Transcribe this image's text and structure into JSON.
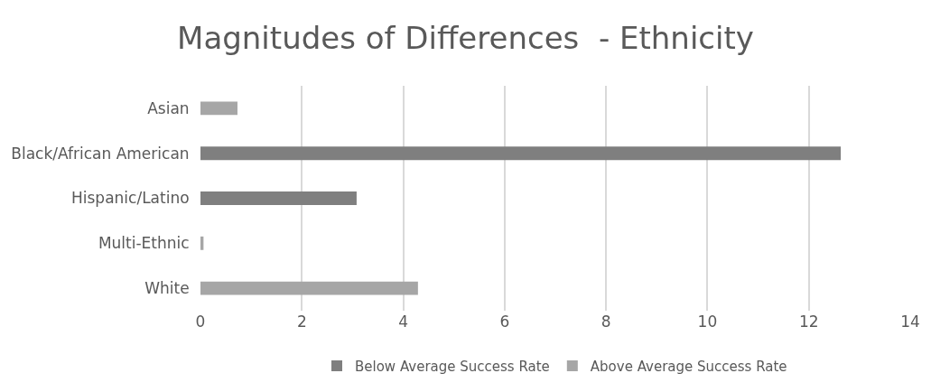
{
  "chart_data": {
    "type": "bar",
    "orientation": "horizontal",
    "title": "Magnitudes of Differences  - Ethnicity",
    "categories": [
      "Asian",
      "Black/African American",
      "Hispanic/Latino",
      "Multi-Ethnic",
      "White"
    ],
    "series": [
      {
        "name": "Below Average Success Rate",
        "color": "#7f7f7f",
        "values": [
          null,
          12.63,
          3.08,
          null,
          null
        ]
      },
      {
        "name": "Above Average Success Rate",
        "color": "#a6a6a6",
        "values": [
          0.73,
          null,
          null,
          0.06,
          4.29
        ]
      }
    ],
    "xlim": [
      0,
      14
    ],
    "xticks": [
      0,
      2,
      4,
      6,
      8,
      10,
      12,
      14
    ],
    "grid": "x",
    "legend": "bottom"
  }
}
